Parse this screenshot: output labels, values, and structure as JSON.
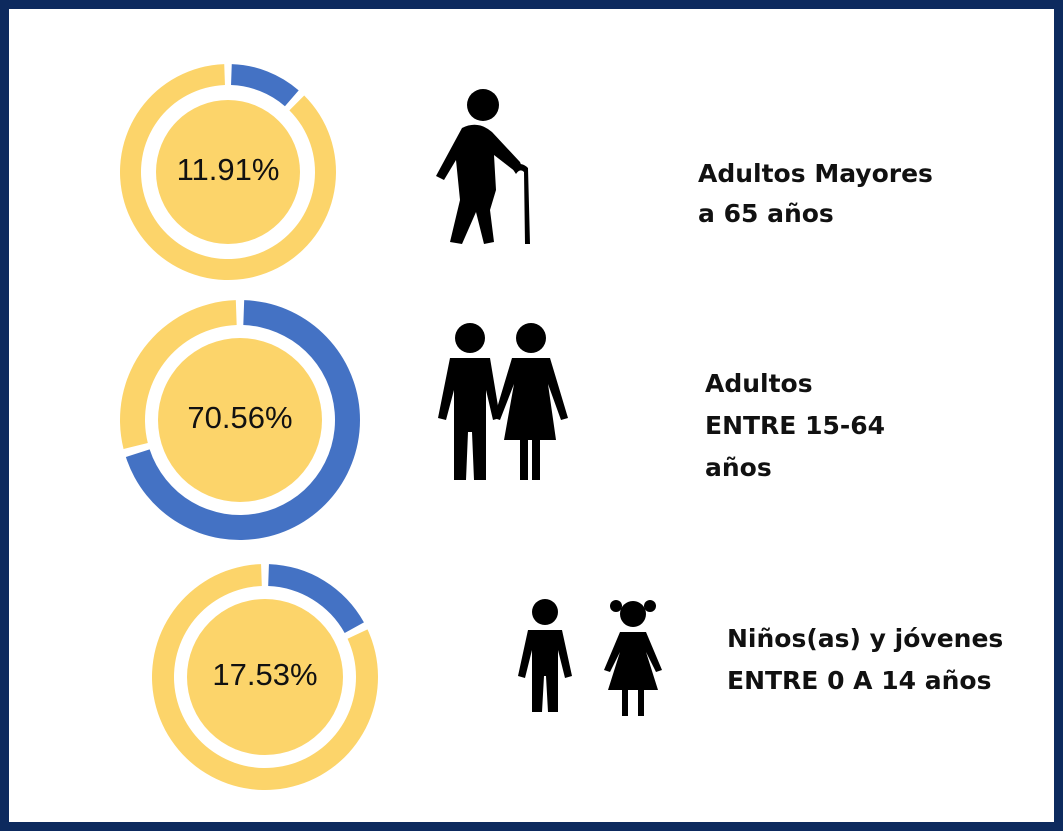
{
  "chart_data": [
    {
      "type": "donut",
      "values": [
        11.91
      ],
      "value_labels": [
        "11.91%"
      ],
      "color": "#4472c4",
      "track_color": "#fcd46a",
      "label": [
        "Adultos Mayores",
        "a 65 años"
      ]
    },
    {
      "type": "donut",
      "values": [
        70.56
      ],
      "value_labels": [
        "70.56%"
      ],
      "color": "#4472c4",
      "track_color": "#fcd46a",
      "label": [
        "Adultos",
        "ENTRE 15-64",
        "años"
      ]
    },
    {
      "type": "donut",
      "values": [
        17.53
      ],
      "value_labels": [
        "17.53%"
      ],
      "color": "#4472c4",
      "track_color": "#fcd46a",
      "label": [
        "Niños(as) y jóvenes",
        "ENTRE 0 A 14 años"
      ]
    }
  ]
}
